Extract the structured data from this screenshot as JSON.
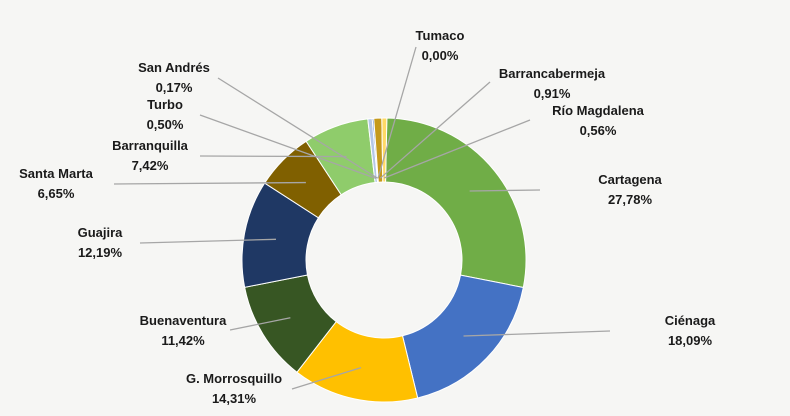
{
  "chart_data": {
    "type": "pie",
    "donut": true,
    "title": "",
    "legend": "none",
    "categories": [
      "Cartagena",
      "Ciénaga",
      "G. Morrosquillo",
      "Buenaventura",
      "Guajira",
      "Santa Marta",
      "Barranquilla",
      "Turbo",
      "San Andrés",
      "Tumaco",
      "Barrancabermeja",
      "Río Magdalena"
    ],
    "values": [
      27.78,
      18.09,
      14.31,
      11.42,
      12.19,
      6.65,
      7.42,
      0.5,
      0.17,
      0.0,
      0.91,
      0.56
    ],
    "value_labels": [
      "27,78%",
      "18,09%",
      "14,31%",
      "11,42%",
      "12,19%",
      "6,65%",
      "7,42%",
      "0,50%",
      "0,17%",
      "0,00%",
      "0,91%",
      "0,56%"
    ],
    "colors": [
      "#70ad47",
      "#4472c4",
      "#ffc000",
      "#375623",
      "#1f3864",
      "#806000",
      "#8fcc6b",
      "#b4c7e7",
      "#4472c4",
      "#a5a5a5",
      "#c59a1c",
      "#ffd966"
    ]
  }
}
